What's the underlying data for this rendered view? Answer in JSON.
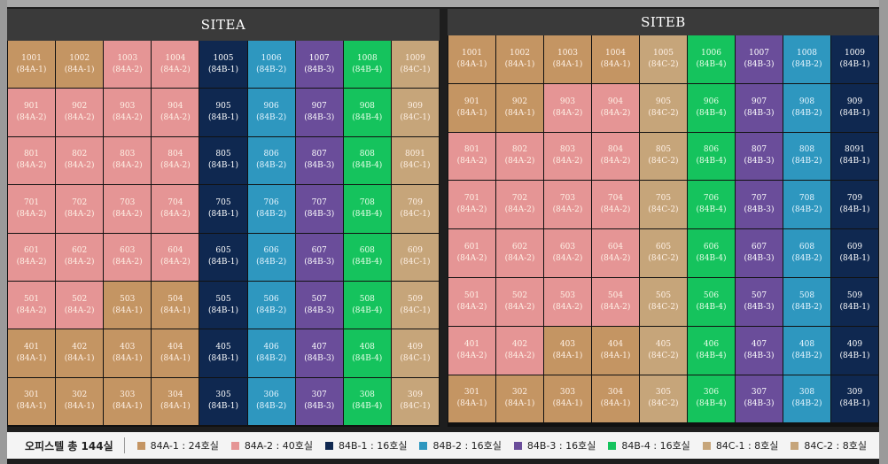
{
  "colors": {
    "84A-1": "#c49563",
    "84A-2": "#e59595",
    "84B-1": "#0f2850",
    "84B-2": "#2e97bf",
    "84B-3": "#6a4d9a",
    "84B-4": "#15c35d",
    "84C-1": "#c6a57a",
    "84C-2": "#c6a57a"
  },
  "site_a": {
    "title": "SITEA",
    "rows": [
      [
        [
          "1001",
          "84A-1"
        ],
        [
          "1002",
          "84A-1"
        ],
        [
          "1003",
          "84A-2"
        ],
        [
          "1004",
          "84A-2"
        ],
        [
          "1005",
          "84B-1"
        ],
        [
          "1006",
          "84B-2"
        ],
        [
          "1007",
          "84B-3"
        ],
        [
          "1008",
          "84B-4"
        ],
        [
          "1009",
          "84C-1"
        ]
      ],
      [
        [
          "901",
          "84A-2"
        ],
        [
          "902",
          "84A-2"
        ],
        [
          "903",
          "84A-2"
        ],
        [
          "904",
          "84A-2"
        ],
        [
          "905",
          "84B-1"
        ],
        [
          "906",
          "84B-2"
        ],
        [
          "907",
          "84B-3"
        ],
        [
          "908",
          "84B-4"
        ],
        [
          "909",
          "84C-1"
        ]
      ],
      [
        [
          "801",
          "84A-2"
        ],
        [
          "802",
          "84A-2"
        ],
        [
          "803",
          "84A-2"
        ],
        [
          "804",
          "84A-2"
        ],
        [
          "805",
          "84B-1"
        ],
        [
          "806",
          "84B-2"
        ],
        [
          "807",
          "84B-3"
        ],
        [
          "808",
          "84B-4"
        ],
        [
          "8091",
          "84C-1"
        ]
      ],
      [
        [
          "701",
          "84A-2"
        ],
        [
          "702",
          "84A-2"
        ],
        [
          "703",
          "84A-2"
        ],
        [
          "704",
          "84A-2"
        ],
        [
          "705",
          "84B-1"
        ],
        [
          "706",
          "84B-2"
        ],
        [
          "707",
          "84B-3"
        ],
        [
          "708",
          "84B-4"
        ],
        [
          "709",
          "84C-1"
        ]
      ],
      [
        [
          "601",
          "84A-2"
        ],
        [
          "602",
          "84A-2"
        ],
        [
          "603",
          "84A-2"
        ],
        [
          "604",
          "84A-2"
        ],
        [
          "605",
          "84B-1"
        ],
        [
          "606",
          "84B-2"
        ],
        [
          "607",
          "84B-3"
        ],
        [
          "608",
          "84B-4"
        ],
        [
          "609",
          "84C-1"
        ]
      ],
      [
        [
          "501",
          "84A-2"
        ],
        [
          "502",
          "84A-2"
        ],
        [
          "503",
          "84A-1"
        ],
        [
          "504",
          "84A-1"
        ],
        [
          "505",
          "84B-1"
        ],
        [
          "506",
          "84B-2"
        ],
        [
          "507",
          "84B-3"
        ],
        [
          "508",
          "84B-4"
        ],
        [
          "509",
          "84C-1"
        ]
      ],
      [
        [
          "401",
          "84A-1"
        ],
        [
          "402",
          "84A-1"
        ],
        [
          "403",
          "84A-1"
        ],
        [
          "404",
          "84A-1"
        ],
        [
          "405",
          "84B-1"
        ],
        [
          "406",
          "84B-2"
        ],
        [
          "407",
          "84B-3"
        ],
        [
          "408",
          "84B-4"
        ],
        [
          "409",
          "84C-1"
        ]
      ],
      [
        [
          "301",
          "84A-1"
        ],
        [
          "302",
          "84A-1"
        ],
        [
          "303",
          "84A-1"
        ],
        [
          "304",
          "84A-1"
        ],
        [
          "305",
          "84B-1"
        ],
        [
          "306",
          "84B-2"
        ],
        [
          "307",
          "84B-3"
        ],
        [
          "308",
          "84B-4"
        ],
        [
          "309",
          "84C-1"
        ]
      ]
    ]
  },
  "site_b": {
    "title": "SITEB",
    "rows": [
      [
        [
          "1001",
          "84A-1"
        ],
        [
          "1002",
          "84A-1"
        ],
        [
          "1003",
          "84A-1"
        ],
        [
          "1004",
          "84A-1"
        ],
        [
          "1005",
          "84C-2"
        ],
        [
          "1006",
          "84B-4"
        ],
        [
          "1007",
          "84B-3"
        ],
        [
          "1008",
          "84B-2"
        ],
        [
          "1009",
          "84B-1"
        ]
      ],
      [
        [
          "901",
          "84A-1"
        ],
        [
          "902",
          "84A-1"
        ],
        [
          "903",
          "84A-2"
        ],
        [
          "904",
          "84A-2"
        ],
        [
          "905",
          "84C-2"
        ],
        [
          "906",
          "84B-4"
        ],
        [
          "907",
          "84B-3"
        ],
        [
          "908",
          "84B-2"
        ],
        [
          "909",
          "84B-1"
        ]
      ],
      [
        [
          "801",
          "84A-2"
        ],
        [
          "802",
          "84A-2"
        ],
        [
          "803",
          "84A-2"
        ],
        [
          "804",
          "84A-2"
        ],
        [
          "805",
          "84C-2"
        ],
        [
          "806",
          "84B-4"
        ],
        [
          "807",
          "84B-3"
        ],
        [
          "808",
          "84B-2"
        ],
        [
          "8091",
          "84B-1"
        ]
      ],
      [
        [
          "701",
          "84A-2"
        ],
        [
          "702",
          "84A-2"
        ],
        [
          "703",
          "84A-2"
        ],
        [
          "704",
          "84A-2"
        ],
        [
          "705",
          "84C-2"
        ],
        [
          "706",
          "84B-4"
        ],
        [
          "707",
          "84B-3"
        ],
        [
          "708",
          "84B-2"
        ],
        [
          "709",
          "84B-1"
        ]
      ],
      [
        [
          "601",
          "84A-2"
        ],
        [
          "602",
          "84A-2"
        ],
        [
          "603",
          "84A-2"
        ],
        [
          "604",
          "84A-2"
        ],
        [
          "605",
          "84C-2"
        ],
        [
          "606",
          "84B-4"
        ],
        [
          "607",
          "84B-3"
        ],
        [
          "608",
          "84B-2"
        ],
        [
          "609",
          "84B-1"
        ]
      ],
      [
        [
          "501",
          "84A-2"
        ],
        [
          "502",
          "84A-2"
        ],
        [
          "503",
          "84A-2"
        ],
        [
          "504",
          "84A-2"
        ],
        [
          "505",
          "84C-2"
        ],
        [
          "506",
          "84B-4"
        ],
        [
          "507",
          "84B-3"
        ],
        [
          "508",
          "84B-2"
        ],
        [
          "509",
          "84B-1"
        ]
      ],
      [
        [
          "401",
          "84A-2"
        ],
        [
          "402",
          "84A-2"
        ],
        [
          "403",
          "84A-1"
        ],
        [
          "404",
          "84A-1"
        ],
        [
          "405",
          "84C-2"
        ],
        [
          "406",
          "84B-4"
        ],
        [
          "407",
          "84B-3"
        ],
        [
          "408",
          "84B-2"
        ],
        [
          "409",
          "84B-1"
        ]
      ],
      [
        [
          "301",
          "84A-1"
        ],
        [
          "302",
          "84A-1"
        ],
        [
          "303",
          "84A-1"
        ],
        [
          "304",
          "84A-1"
        ],
        [
          "305",
          "84C-2"
        ],
        [
          "306",
          "84B-4"
        ],
        [
          "307",
          "84B-3"
        ],
        [
          "308",
          "84B-2"
        ],
        [
          "309",
          "84B-1"
        ]
      ]
    ]
  },
  "legend": {
    "total": "오피스텔 총 144실",
    "items": [
      {
        "type": "84A-1",
        "label": "84A-1 : 24호실"
      },
      {
        "type": "84A-2",
        "label": "84A-2 : 40호실"
      },
      {
        "type": "84B-1",
        "label": "84B-1 : 16호실"
      },
      {
        "type": "84B-2",
        "label": "84B-2 : 16호실"
      },
      {
        "type": "84B-3",
        "label": "84B-3 : 16호실"
      },
      {
        "type": "84B-4",
        "label": "84B-4 : 16호실"
      },
      {
        "type": "84C-1",
        "label": "84C-1 : 8호실"
      },
      {
        "type": "84C-2",
        "label": "84C-2 : 8호실"
      }
    ]
  }
}
